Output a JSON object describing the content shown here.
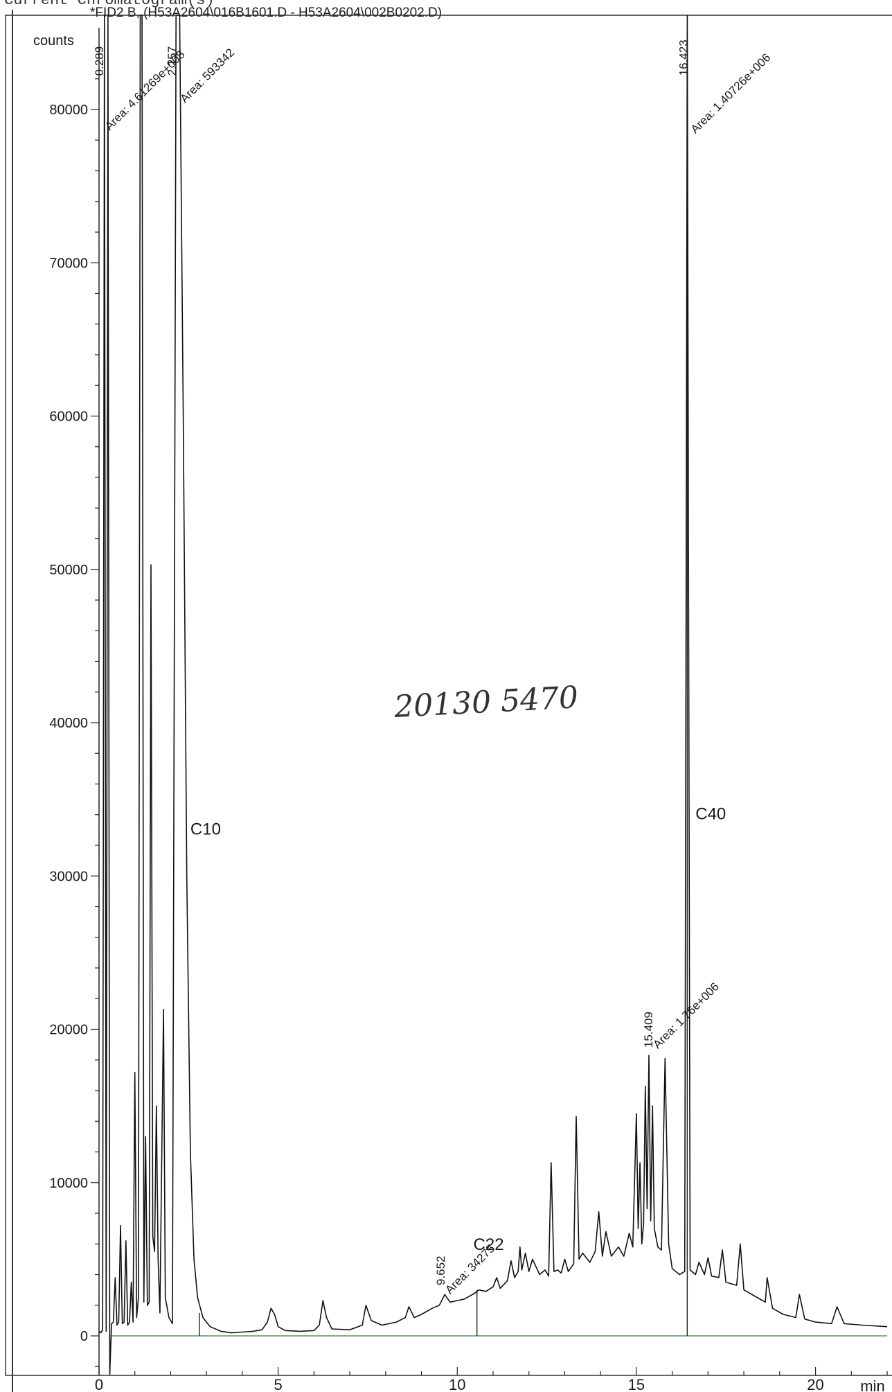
{
  "window": {
    "title": "Current Chromatogram(s)",
    "signal": "*FID2 B,  (H53A2604\\016B1601.D - H53A2604\\002B0202.D)"
  },
  "handwritten_note": "20130 5470",
  "chart_data": {
    "type": "line",
    "title": "",
    "xlabel": "min",
    "ylabel": "counts",
    "xlim": [
      0,
      22
    ],
    "ylim": [
      -3000,
      85000
    ],
    "x_ticks": [
      0,
      5,
      10,
      15,
      20
    ],
    "y_ticks": [
      0,
      10000,
      20000,
      30000,
      40000,
      50000,
      60000,
      70000,
      80000
    ],
    "grid": false,
    "series": [
      {
        "points": [
          [
            0.0,
            300
          ],
          [
            0.05,
            200
          ],
          [
            0.1,
            400
          ],
          [
            0.15,
            100000
          ],
          [
            0.2,
            300
          ],
          [
            0.25,
            100000
          ],
          [
            0.3,
            -2500
          ],
          [
            0.35,
            800
          ],
          [
            0.4,
            900
          ],
          [
            0.45,
            3800
          ],
          [
            0.5,
            700
          ],
          [
            0.55,
            900
          ],
          [
            0.6,
            7200
          ],
          [
            0.65,
            800
          ],
          [
            0.7,
            900
          ],
          [
            0.75,
            6200
          ],
          [
            0.8,
            700
          ],
          [
            0.85,
            900
          ],
          [
            0.9,
            3500
          ],
          [
            0.95,
            900
          ],
          [
            1.0,
            17200
          ],
          [
            1.05,
            1200
          ],
          [
            1.1,
            2500
          ],
          [
            1.15,
            100000
          ],
          [
            1.2,
            100000
          ],
          [
            1.25,
            2200
          ],
          [
            1.3,
            13000
          ],
          [
            1.35,
            2000
          ],
          [
            1.4,
            2200
          ],
          [
            1.45,
            50300
          ],
          [
            1.5,
            6500
          ],
          [
            1.55,
            5500
          ],
          [
            1.6,
            15000
          ],
          [
            1.65,
            5000
          ],
          [
            1.7,
            1500
          ],
          [
            1.8,
            21300
          ],
          [
            1.85,
            2500
          ],
          [
            1.95,
            1200
          ],
          [
            2.05,
            800
          ],
          [
            2.15,
            100000
          ],
          [
            2.25,
            100000
          ],
          [
            2.35,
            60000
          ],
          [
            2.45,
            30000
          ],
          [
            2.55,
            12000
          ],
          [
            2.65,
            5000
          ],
          [
            2.75,
            2500
          ],
          [
            2.9,
            1200
          ],
          [
            3.1,
            600
          ],
          [
            3.4,
            300
          ],
          [
            3.7,
            200
          ],
          [
            4.0,
            250
          ],
          [
            4.3,
            300
          ],
          [
            4.55,
            400
          ],
          [
            4.7,
            900
          ],
          [
            4.8,
            1800
          ],
          [
            4.9,
            1400
          ],
          [
            5.0,
            600
          ],
          [
            5.2,
            350
          ],
          [
            5.6,
            300
          ],
          [
            6.0,
            350
          ],
          [
            6.15,
            700
          ],
          [
            6.25,
            2300
          ],
          [
            6.35,
            1200
          ],
          [
            6.5,
            450
          ],
          [
            7.0,
            400
          ],
          [
            7.35,
            700
          ],
          [
            7.45,
            2000
          ],
          [
            7.6,
            1000
          ],
          [
            7.9,
            700
          ],
          [
            8.3,
            900
          ],
          [
            8.55,
            1200
          ],
          [
            8.65,
            1900
          ],
          [
            8.8,
            1200
          ],
          [
            9.0,
            1400
          ],
          [
            9.3,
            1800
          ],
          [
            9.5,
            2000
          ],
          [
            9.65,
            2700
          ],
          [
            9.8,
            2200
          ],
          [
            10.0,
            2300
          ],
          [
            10.2,
            2400
          ],
          [
            10.5,
            2800
          ],
          [
            10.6,
            3000
          ],
          [
            10.8,
            2900
          ],
          [
            11.0,
            3200
          ],
          [
            11.1,
            3800
          ],
          [
            11.2,
            3100
          ],
          [
            11.4,
            3600
          ],
          [
            11.5,
            4900
          ],
          [
            11.6,
            3800
          ],
          [
            11.7,
            4200
          ],
          [
            11.75,
            5800
          ],
          [
            11.8,
            4300
          ],
          [
            11.9,
            5400
          ],
          [
            12.0,
            4200
          ],
          [
            12.1,
            5000
          ],
          [
            12.3,
            4000
          ],
          [
            12.45,
            4300
          ],
          [
            12.55,
            3900
          ],
          [
            12.62,
            11300
          ],
          [
            12.7,
            4200
          ],
          [
            12.8,
            4300
          ],
          [
            12.9,
            4100
          ],
          [
            13.0,
            5000
          ],
          [
            13.1,
            4200
          ],
          [
            13.25,
            4700
          ],
          [
            13.32,
            14300
          ],
          [
            13.4,
            5000
          ],
          [
            13.5,
            5400
          ],
          [
            13.7,
            4800
          ],
          [
            13.85,
            5500
          ],
          [
            13.95,
            8100
          ],
          [
            14.05,
            5200
          ],
          [
            14.15,
            6800
          ],
          [
            14.3,
            5200
          ],
          [
            14.5,
            5800
          ],
          [
            14.65,
            5200
          ],
          [
            14.8,
            6700
          ],
          [
            14.9,
            5800
          ],
          [
            15.0,
            14500
          ],
          [
            15.05,
            7000
          ],
          [
            15.1,
            11300
          ],
          [
            15.15,
            6000
          ],
          [
            15.2,
            7300
          ],
          [
            15.25,
            16300
          ],
          [
            15.3,
            8300
          ],
          [
            15.35,
            18300
          ],
          [
            15.4,
            7500
          ],
          [
            15.45,
            15000
          ],
          [
            15.5,
            7000
          ],
          [
            15.6,
            5800
          ],
          [
            15.7,
            5600
          ],
          [
            15.8,
            18100
          ],
          [
            15.9,
            6000
          ],
          [
            16.0,
            4400
          ],
          [
            16.2,
            4000
          ],
          [
            16.35,
            4200
          ],
          [
            16.42,
            100000
          ],
          [
            16.5,
            4300
          ],
          [
            16.65,
            4000
          ],
          [
            16.75,
            4800
          ],
          [
            16.9,
            4000
          ],
          [
            17.0,
            5100
          ],
          [
            17.1,
            3900
          ],
          [
            17.3,
            3800
          ],
          [
            17.4,
            5600
          ],
          [
            17.5,
            3500
          ],
          [
            17.8,
            3300
          ],
          [
            17.9,
            6000
          ],
          [
            18.0,
            3000
          ],
          [
            18.3,
            2600
          ],
          [
            18.6,
            2200
          ],
          [
            18.65,
            3800
          ],
          [
            18.8,
            1800
          ],
          [
            19.1,
            1400
          ],
          [
            19.45,
            1200
          ],
          [
            19.55,
            2700
          ],
          [
            19.7,
            1100
          ],
          [
            20.0,
            900
          ],
          [
            20.45,
            800
          ],
          [
            20.6,
            1900
          ],
          [
            20.8,
            800
          ],
          [
            21.3,
            700
          ],
          [
            22.0,
            600
          ]
        ]
      }
    ],
    "baselines": [
      {
        "from": [
          0.35,
          0.0
        ],
        "to": [
          22.0,
          0.0
        ]
      }
    ],
    "markers": [
      {
        "x": 2.8,
        "y": 0.0,
        "top": 1500
      },
      {
        "x": 10.55,
        "y": 0.0,
        "top": 3000
      },
      {
        "x": 16.42,
        "y": 0.0,
        "top": 84000
      }
    ],
    "annotations": [
      {
        "text": "0.289",
        "x": 0.12,
        "y": 82200,
        "rotate": -90
      },
      {
        "text": "Area: 4.61269e+008",
        "x": 0.3,
        "y": 78600,
        "rotate": -45
      },
      {
        "text": "2.157",
        "x": 2.15,
        "y": 82200,
        "rotate": -90
      },
      {
        "text": "Area: 593342",
        "x": 2.4,
        "y": 80400,
        "rotate": -45
      },
      {
        "text": "C10",
        "x": 2.55,
        "y": 32700,
        "rotate": 0
      },
      {
        "text": "16.423",
        "x": 16.42,
        "y": 82200,
        "rotate": -90
      },
      {
        "text": "Area: 1.40726e+006",
        "x": 16.65,
        "y": 78400,
        "rotate": -45
      },
      {
        "text": "C40",
        "x": 16.65,
        "y": 33700,
        "rotate": 0
      },
      {
        "text": "15.409",
        "x": 15.45,
        "y": 18800,
        "rotate": -90
      },
      {
        "text": "Area: 1.76e+006",
        "x": 15.6,
        "y": 18700,
        "rotate": -45
      },
      {
        "text": "9.652",
        "x": 9.65,
        "y": 3300,
        "rotate": -90
      },
      {
        "text": "Area: 34275",
        "x": 9.8,
        "y": 2700,
        "rotate": -45
      },
      {
        "text": "C22",
        "x": 10.45,
        "y": 5600,
        "rotate": 0
      }
    ]
  }
}
